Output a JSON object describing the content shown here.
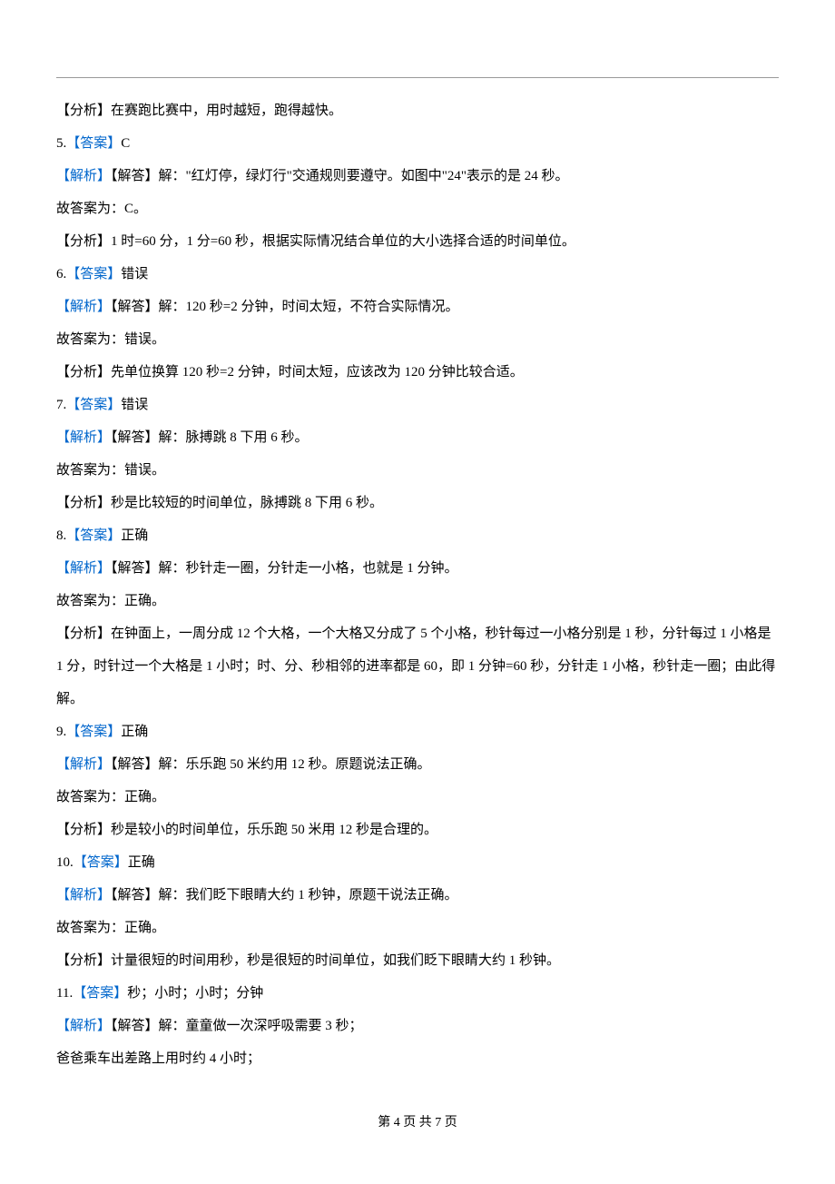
{
  "separator": {
    "present": true
  },
  "lines": [
    {
      "type": "plain",
      "text": "【分析】在赛跑比赛中，用时越短，跑得越快。"
    },
    {
      "type": "answer",
      "num": "5.",
      "label": "【答案】",
      "text": "C"
    },
    {
      "type": "parse",
      "label": "【解析】",
      "text": "【解答】解：\"红灯停，绿灯行\"交通规则要遵守。如图中\"24\"表示的是 24 秒。"
    },
    {
      "type": "plain",
      "text": "故答案为：C。"
    },
    {
      "type": "plain",
      "text": "【分析】1 时=60 分，1 分=60 秒，根据实际情况结合单位的大小选择合适的时间单位。"
    },
    {
      "type": "answer",
      "num": "6.",
      "label": "【答案】",
      "text": "错误"
    },
    {
      "type": "parse",
      "label": "【解析】",
      "text": "【解答】解：120 秒=2 分钟，时间太短，不符合实际情况。"
    },
    {
      "type": "plain",
      "text": "故答案为：错误。"
    },
    {
      "type": "plain",
      "text": "【分析】先单位换算 120 秒=2 分钟，时间太短，应该改为 120 分钟比较合适。"
    },
    {
      "type": "answer",
      "num": "7.",
      "label": "【答案】",
      "text": "错误"
    },
    {
      "type": "parse",
      "label": "【解析】",
      "text": "【解答】解：脉搏跳 8 下用 6 秒。"
    },
    {
      "type": "plain",
      "text": "故答案为：错误。"
    },
    {
      "type": "plain",
      "text": "【分析】秒是比较短的时间单位，脉搏跳 8 下用 6 秒。"
    },
    {
      "type": "answer",
      "num": "8.",
      "label": "【答案】",
      "text": "正确"
    },
    {
      "type": "parse",
      "label": "【解析】",
      "text": "【解答】解：秒针走一圈，分针走一小格，也就是 1 分钟。"
    },
    {
      "type": "plain",
      "text": "故答案为：正确。"
    },
    {
      "type": "plain",
      "text": "【分析】在钟面上，一周分成 12 个大格，一个大格又分成了 5 个小格，秒针每过一小格分别是 1 秒，分针每过 1 小格是 1 分，时针过一个大格是 1 小时；时、分、秒相邻的进率都是 60，即 1 分钟=60 秒，分针走 1 小格，秒针走一圈；由此得解。"
    },
    {
      "type": "answer",
      "num": "9.",
      "label": "【答案】",
      "text": "正确"
    },
    {
      "type": "parse",
      "label": "【解析】",
      "text": "【解答】解：乐乐跑 50 米约用 12 秒。原题说法正确。"
    },
    {
      "type": "plain",
      "text": "故答案为：正确。"
    },
    {
      "type": "plain",
      "text": "【分析】秒是较小的时间单位，乐乐跑 50 米用 12 秒是合理的。"
    },
    {
      "type": "answer",
      "num": "10.",
      "label": "【答案】",
      "text": "正确"
    },
    {
      "type": "parse",
      "label": "【解析】",
      "text": "【解答】解：我们眨下眼睛大约 1 秒钟，原题干说法正确。"
    },
    {
      "type": "plain",
      "text": "故答案为：正确。"
    },
    {
      "type": "plain",
      "text": "【分析】计量很短的时间用秒，秒是很短的时间单位，如我们眨下眼睛大约 1 秒钟。"
    },
    {
      "type": "answer",
      "num": "11.",
      "label": "【答案】",
      "text": "秒；小时；小时；分钟"
    },
    {
      "type": "parse",
      "label": "【解析】",
      "text": "【解答】解：童童做一次深呼吸需要 3 秒；"
    },
    {
      "type": "plain",
      "text": "爸爸乘车出差路上用时约 4 小时；"
    }
  ],
  "footer": {
    "text": "第 4 页 共 7 页"
  },
  "colors": {
    "label": "#0066cc",
    "text": "#000000",
    "separator": "#999999",
    "background": "#ffffff"
  },
  "fontsize": {
    "body": 15,
    "footer": 14
  }
}
